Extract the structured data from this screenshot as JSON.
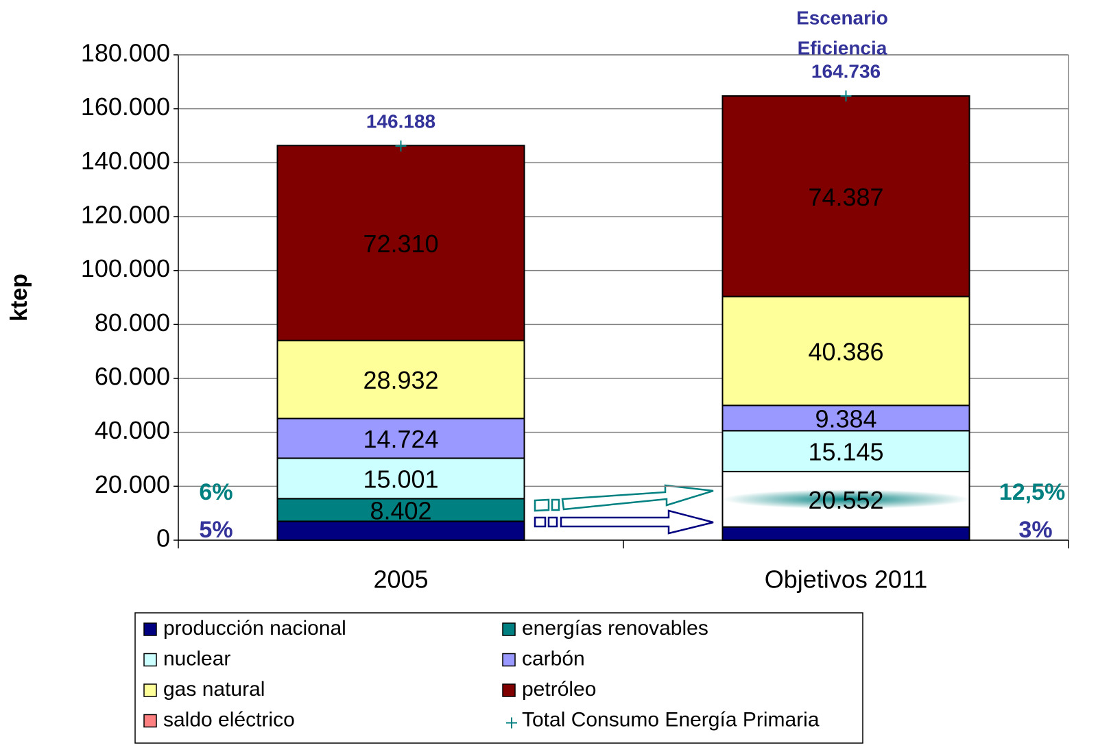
{
  "chart_data": {
    "type": "stacked_bar",
    "ylabel": "ktep",
    "categories": [
      "2005",
      "Objetivos 2011"
    ],
    "ylim": [
      0,
      180000
    ],
    "yticks": [
      0,
      {
        "value": 20000,
        "label": "20.000"
      },
      {
        "value": 40000,
        "label": "40.000"
      },
      {
        "value": 60000,
        "label": "60.000"
      },
      {
        "value": 80000,
        "label": "80.000"
      },
      {
        "value": 100000,
        "label": "100.000"
      },
      {
        "value": 120000,
        "label": "120.000"
      },
      {
        "value": 140000,
        "label": "140.000"
      },
      {
        "value": 160000,
        "label": "160.000"
      },
      {
        "value": 180000,
        "label": "180.000"
      }
    ],
    "grid": true,
    "legend": "bottom",
    "series": [
      {
        "name": "producción nacional",
        "color": "#000080",
        "values": [
          7000,
          4900
        ]
      },
      {
        "name": "energías renovables",
        "color": "#008080",
        "values": [
          8402,
          20552
        ],
        "value_labels": [
          "8.402",
          "20.552"
        ],
        "gradient_points": [
          1
        ]
      },
      {
        "name": "nuclear",
        "color": "#ccffff",
        "values": [
          15001,
          15145
        ],
        "value_labels": [
          "15.001",
          "15.145"
        ]
      },
      {
        "name": "carbón",
        "color": "#9999ff",
        "values": [
          14724,
          9384
        ],
        "value_labels": [
          "14.724",
          "9.384"
        ]
      },
      {
        "name": "gas natural",
        "color": "#ffff99",
        "values": [
          28932,
          40386
        ],
        "value_labels": [
          "28.932",
          "40.386"
        ]
      },
      {
        "name": "petróleo",
        "color": "#800000",
        "values": [
          72310,
          74387
        ],
        "value_labels": [
          "72.310",
          "74.387"
        ]
      },
      {
        "name": "saldo eléctrico",
        "color": "#ff8080",
        "values": [
          null,
          null
        ]
      },
      {
        "name": "Total Consumo Energía Primaria",
        "color": "#008080",
        "marker": "+",
        "values": [
          146188,
          164736
        ],
        "value_labels": [
          "146.188",
          "164.736"
        ]
      }
    ],
    "annotations": [
      {
        "text": "Escenario",
        "color": "#333399"
      },
      {
        "text": "Eficiencia",
        "color": "#333399"
      },
      {
        "text": "6%",
        "color": "#008080"
      },
      {
        "text": "5%",
        "color": "#333399"
      },
      {
        "text": "12,5%",
        "color": "#008080"
      },
      {
        "text": "3%",
        "color": "#333399"
      }
    ]
  }
}
